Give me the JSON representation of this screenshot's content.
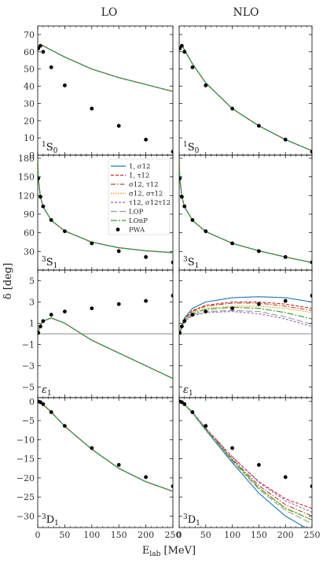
{
  "figure": {
    "col_titles": [
      "LO",
      "NLO"
    ],
    "ylabel": "δ [deg]",
    "xlabel": "E",
    "xlabel_sub": "lab",
    "xlabel_unit": " [MeV]"
  },
  "legend": [
    {
      "label": "1, σ12",
      "color": "#1f77b4",
      "dash": ""
    },
    {
      "label": "1, τ12",
      "color": "#d62728",
      "dash": "4,2"
    },
    {
      "label": "σ12, τ12",
      "color": "#a0522d",
      "dash": "6,2,1.5,2"
    },
    {
      "label": "σ12, στ12",
      "color": "#ff8c00",
      "dash": "1.5,1.5"
    },
    {
      "label": "τ12, σ12τ12",
      "color": "#9467bd",
      "dash": "3,2"
    },
    {
      "label": "LOP",
      "color": "#999999",
      "dash": "8,3"
    },
    {
      "label": "LOnP",
      "color": "#2ca02c",
      "dash": "8,2,2,2"
    },
    {
      "label": "PWA",
      "color": "#000000",
      "dash": "marker"
    }
  ],
  "chart_data": [
    {
      "type": "line",
      "row": 0,
      "col": 0,
      "panel_label": "1S0",
      "xlim": [
        0,
        250
      ],
      "ylim": [
        0,
        75
      ],
      "yticks": [
        0,
        10,
        20,
        30,
        40,
        50,
        60,
        70
      ],
      "xticks": [
        0,
        50,
        100,
        150,
        200,
        250
      ],
      "series": [
        {
          "x": [
            0,
            5,
            10,
            25,
            50,
            100,
            150,
            200,
            250
          ],
          "y": [
            63,
            64,
            63.5,
            61,
            57,
            50,
            45,
            41,
            37
          ]
        }
      ],
      "points": {
        "x": [
          1,
          5,
          10,
          25,
          50,
          100,
          150,
          200,
          250
        ],
        "y": [
          62,
          63.5,
          60,
          51,
          40.5,
          27,
          17,
          9,
          2
        ]
      }
    },
    {
      "type": "line",
      "row": 0,
      "col": 1,
      "panel_label": "1S0",
      "xlim": [
        0,
        250
      ],
      "ylim": [
        0,
        75
      ],
      "yticks": [
        0,
        10,
        20,
        30,
        40,
        50,
        60,
        70
      ],
      "xticks": [
        0,
        50,
        100,
        150,
        200,
        250
      ],
      "series": [
        {
          "x": [
            0,
            5,
            10,
            25,
            50,
            100,
            150,
            200,
            250
          ],
          "y": [
            62,
            64,
            61,
            53,
            42,
            27,
            17,
            9,
            2.5
          ]
        }
      ],
      "points": {
        "x": [
          1,
          5,
          10,
          25,
          50,
          100,
          150,
          200,
          250
        ],
        "y": [
          62,
          63.5,
          60,
          51,
          40.5,
          27,
          17,
          9,
          2
        ]
      }
    },
    {
      "type": "line",
      "row": 1,
      "col": 0,
      "panel_label": "3S1",
      "xlim": [
        0,
        250
      ],
      "ylim": [
        0,
        185
      ],
      "yticks": [
        30,
        60,
        90,
        120,
        150,
        180
      ],
      "xticks": [
        0,
        50,
        100,
        150,
        200,
        250
      ],
      "series": [
        {
          "x": [
            0,
            1,
            5,
            10,
            25,
            50,
            100,
            150,
            200,
            250
          ],
          "y": [
            180,
            148,
            118,
            102,
            80,
            63,
            45,
            36,
            31,
            28
          ]
        }
      ],
      "points": {
        "x": [
          1,
          5,
          10,
          25,
          50,
          100,
          150,
          200,
          250
        ],
        "y": [
          147.5,
          118,
          102.5,
          80.5,
          62.5,
          43,
          30.5,
          21,
          12.5
        ]
      }
    },
    {
      "type": "line",
      "row": 1,
      "col": 1,
      "panel_label": "3S1",
      "xlim": [
        0,
        250
      ],
      "ylim": [
        0,
        185
      ],
      "yticks": [
        30,
        60,
        90,
        120,
        150,
        180
      ],
      "xticks": [
        0,
        50,
        100,
        150,
        200,
        250
      ],
      "series": [
        {
          "x": [
            0,
            1,
            5,
            10,
            25,
            50,
            100,
            150,
            200,
            250
          ],
          "y": [
            180,
            148,
            118,
            102,
            80,
            62,
            43,
            31,
            21,
            12
          ]
        }
      ],
      "points": {
        "x": [
          1,
          5,
          10,
          25,
          50,
          100,
          150,
          200,
          250
        ],
        "y": [
          147.5,
          118,
          102.5,
          80.5,
          62.5,
          43,
          30.5,
          21,
          12.5
        ]
      }
    },
    {
      "type": "line",
      "row": 2,
      "col": 0,
      "panel_label": "ε1",
      "xlim": [
        0,
        250
      ],
      "ylim": [
        -6,
        6
      ],
      "yticks": [
        -5,
        -3,
        -1,
        1,
        3,
        5
      ],
      "xticks": [
        0,
        50,
        100,
        150,
        200,
        250
      ],
      "zero_line": true,
      "series": [
        {
          "x": [
            0,
            5,
            10,
            25,
            50,
            100,
            150,
            200,
            250
          ],
          "y": [
            0,
            0.8,
            1.2,
            1.5,
            1.0,
            -0.6,
            -1.8,
            -3.0,
            -4.2
          ]
        }
      ],
      "points": {
        "x": [
          1,
          5,
          10,
          25,
          50,
          100,
          150,
          200,
          250
        ],
        "y": [
          0.1,
          0.7,
          1.2,
          1.8,
          2.1,
          2.4,
          2.8,
          3.1,
          3.6
        ]
      }
    },
    {
      "type": "line",
      "row": 2,
      "col": 1,
      "panel_label": "ε1",
      "xlim": [
        0,
        250
      ],
      "ylim": [
        -6,
        6
      ],
      "yticks": [
        -5,
        -3,
        -1,
        1,
        3,
        5
      ],
      "xticks": [
        0,
        50,
        100,
        150,
        200,
        250
      ],
      "zero_line": true,
      "series": [
        {
          "name_ref": 0,
          "x": [
            0,
            10,
            25,
            50,
            100,
            150,
            200,
            250
          ],
          "y": [
            0,
            1.5,
            2.4,
            3.0,
            3.4,
            3.5,
            3.4,
            3.0
          ]
        },
        {
          "name_ref": 1,
          "x": [
            0,
            10,
            25,
            50,
            100,
            150,
            200,
            250
          ],
          "y": [
            0,
            1.4,
            2.2,
            2.7,
            3.0,
            3.0,
            2.8,
            2.4
          ]
        },
        {
          "name_ref": 2,
          "x": [
            0,
            10,
            25,
            50,
            100,
            150,
            200,
            250
          ],
          "y": [
            0,
            1.4,
            2.1,
            2.6,
            2.9,
            2.9,
            2.6,
            2.2
          ]
        },
        {
          "name_ref": 3,
          "x": [
            0,
            10,
            25,
            50,
            100,
            150,
            200,
            250
          ],
          "y": [
            0,
            1.3,
            2.0,
            2.4,
            2.6,
            2.6,
            2.4,
            2.0
          ]
        },
        {
          "name_ref": 4,
          "x": [
            0,
            10,
            25,
            50,
            100,
            150,
            200,
            250
          ],
          "y": [
            0,
            1.2,
            1.7,
            2.0,
            2.1,
            1.9,
            1.4,
            0.7
          ]
        },
        {
          "name_ref": 5,
          "x": [
            0,
            10,
            25,
            50,
            100,
            150,
            200,
            250
          ],
          "y": [
            0,
            1.2,
            1.8,
            2.1,
            2.2,
            2.1,
            1.6,
            0.9
          ]
        },
        {
          "name_ref": 6,
          "x": [
            0,
            10,
            25,
            50,
            100,
            150,
            200,
            250
          ],
          "y": [
            0,
            1.3,
            1.9,
            2.3,
            2.5,
            2.4,
            2.0,
            1.4
          ]
        }
      ],
      "points": {
        "x": [
          1,
          5,
          10,
          25,
          50,
          100,
          150,
          200,
          250
        ],
        "y": [
          0.1,
          0.7,
          1.2,
          1.8,
          2.1,
          2.4,
          2.8,
          3.1,
          3.6
        ]
      }
    },
    {
      "type": "line",
      "row": 3,
      "col": 0,
      "panel_label": "3D1",
      "xlim": [
        0,
        250
      ],
      "ylim": [
        -33,
        1
      ],
      "yticks": [
        0,
        -5,
        -10,
        -15,
        -20,
        -25,
        -30
      ],
      "xticks": [
        0,
        50,
        100,
        150,
        200,
        250
      ],
      "series": [
        {
          "x": [
            0,
            10,
            25,
            50,
            100,
            150,
            200,
            250
          ],
          "y": [
            0,
            -0.8,
            -2.8,
            -6.5,
            -12.5,
            -17.5,
            -21,
            -23.5
          ]
        }
      ],
      "points": {
        "x": [
          1,
          5,
          10,
          25,
          50,
          100,
          150,
          200,
          250
        ],
        "y": [
          0,
          -0.2,
          -0.7,
          -2.8,
          -6.4,
          -12.2,
          -16.6,
          -19.8,
          -22.2
        ]
      }
    },
    {
      "type": "line",
      "row": 3,
      "col": 1,
      "panel_label": "3D1",
      "xlim": [
        0,
        250
      ],
      "ylim": [
        -33,
        1
      ],
      "yticks": [
        0,
        -5,
        -10,
        -15,
        -20,
        -25,
        -30
      ],
      "xticks": [
        0,
        50,
        100,
        150,
        200,
        250
      ],
      "series": [
        {
          "name_ref": 0,
          "x": [
            0,
            10,
            25,
            50,
            100,
            150,
            200,
            250
          ],
          "y": [
            0,
            -0.8,
            -3.0,
            -7.5,
            -16,
            -24,
            -30,
            -34
          ]
        },
        {
          "name_ref": 1,
          "x": [
            0,
            10,
            25,
            50,
            100,
            150,
            200,
            250
          ],
          "y": [
            0,
            -0.8,
            -2.8,
            -7.0,
            -14.5,
            -21,
            -25.5,
            -28
          ]
        },
        {
          "name_ref": 2,
          "x": [
            0,
            10,
            25,
            50,
            100,
            150,
            200,
            250
          ],
          "y": [
            0,
            -0.8,
            -2.9,
            -7.2,
            -15,
            -22,
            -27,
            -30
          ]
        },
        {
          "name_ref": 3,
          "x": [
            0,
            10,
            25,
            50,
            100,
            150,
            200,
            250
          ],
          "y": [
            0,
            -0.8,
            -2.9,
            -7.3,
            -15.3,
            -22.5,
            -27.8,
            -31
          ]
        },
        {
          "name_ref": 4,
          "x": [
            0,
            10,
            25,
            50,
            100,
            150,
            200,
            250
          ],
          "y": [
            0,
            -0.8,
            -2.8,
            -7.0,
            -14.5,
            -21.2,
            -26,
            -29
          ]
        },
        {
          "name_ref": 5,
          "x": [
            0,
            10,
            25,
            50,
            100,
            150,
            200,
            250
          ],
          "y": [
            0,
            -0.8,
            -2.9,
            -7.4,
            -15.6,
            -23,
            -28.5,
            -32
          ]
        },
        {
          "name_ref": 6,
          "x": [
            0,
            10,
            25,
            50,
            100,
            150,
            200,
            250
          ],
          "y": [
            0,
            -0.8,
            -2.9,
            -7.3,
            -15.3,
            -22.6,
            -28,
            -31
          ]
        }
      ],
      "points": {
        "x": [
          1,
          5,
          10,
          25,
          50,
          100,
          150,
          200,
          250
        ],
        "y": [
          0,
          -0.2,
          -0.7,
          -2.8,
          -6.4,
          -12.2,
          -16.6,
          -19.8,
          -22.2
        ]
      }
    }
  ]
}
